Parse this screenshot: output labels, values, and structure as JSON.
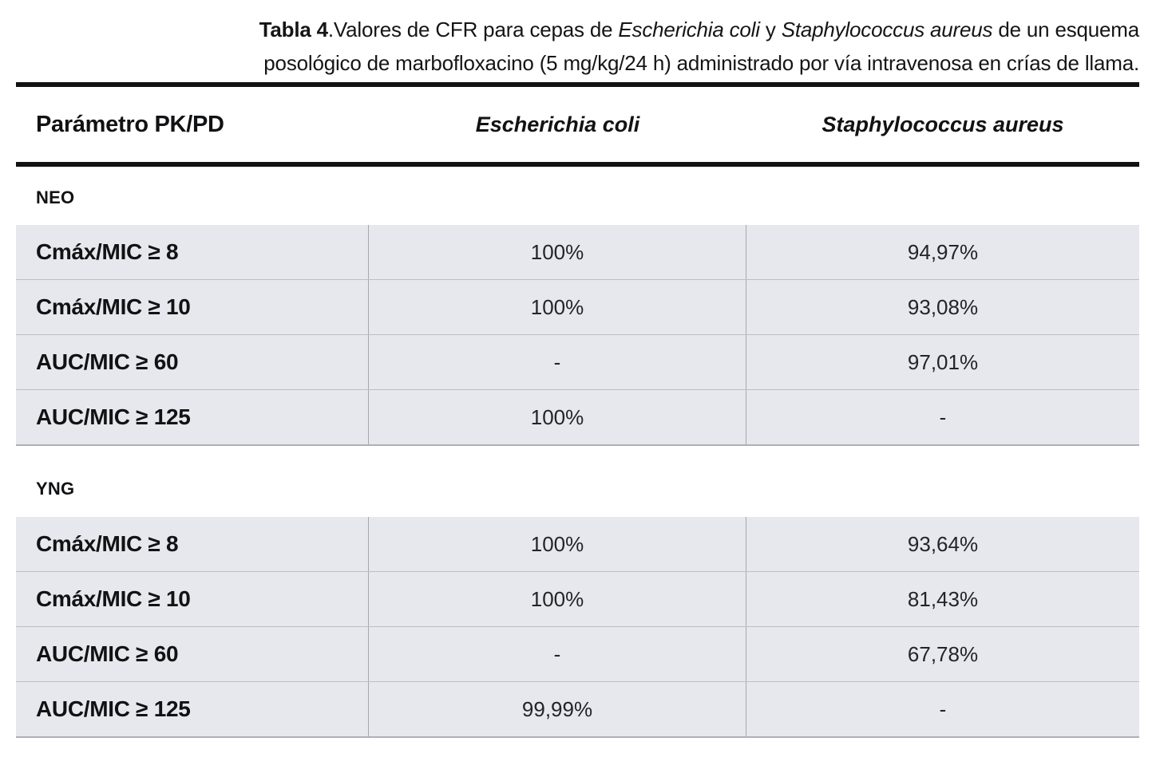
{
  "caption": {
    "line1_bold": "Tabla 4",
    "line1_rest": ".Valores de CFR para cepas de ",
    "line1_italic1": "Escherichia coli",
    "line1_mid": " y ",
    "line1_italic2": "Staphylococcus aureus",
    "line1_end": " de un esquema",
    "line2": "posológico de marbofloxacino (5 mg/kg/24 h) administrado por vía intravenosa en crías de llama."
  },
  "table": {
    "header": {
      "param": "Parámetro PK/PD",
      "species1": "Escherichia coli",
      "species2": "Staphylococcus aureus"
    },
    "sections": [
      {
        "label": "NEO",
        "rows": [
          {
            "param": "Cmáx/MIC ≥ 8",
            "ecoli": "100%",
            "saureus": "94,97%"
          },
          {
            "param": "Cmáx/MIC ≥ 10",
            "ecoli": "100%",
            "saureus": "93,08%"
          },
          {
            "param": "AUC/MIC ≥ 60",
            "ecoli": "-",
            "saureus": "97,01%"
          },
          {
            "param": "AUC/MIC ≥ 125",
            "ecoli": "100%",
            "saureus": "-"
          }
        ]
      },
      {
        "label": "YNG",
        "rows": [
          {
            "param": "Cmáx/MIC ≥ 8",
            "ecoli": "100%",
            "saureus": "93,64%"
          },
          {
            "param": "Cmáx/MIC ≥ 10",
            "ecoli": "100%",
            "saureus": "81,43%"
          },
          {
            "param": "AUC/MIC ≥ 60",
            "ecoli": "-",
            "saureus": "67,78%"
          },
          {
            "param": "AUC/MIC ≥ 125",
            "ecoli": "99,99%",
            "saureus": "-"
          }
        ]
      }
    ]
  },
  "colors": {
    "row_background": "#e7e8ed",
    "rule_black": "#121212",
    "divider_vertical": "#a6a8b0",
    "divider_horizontal": "#bcbec5"
  }
}
